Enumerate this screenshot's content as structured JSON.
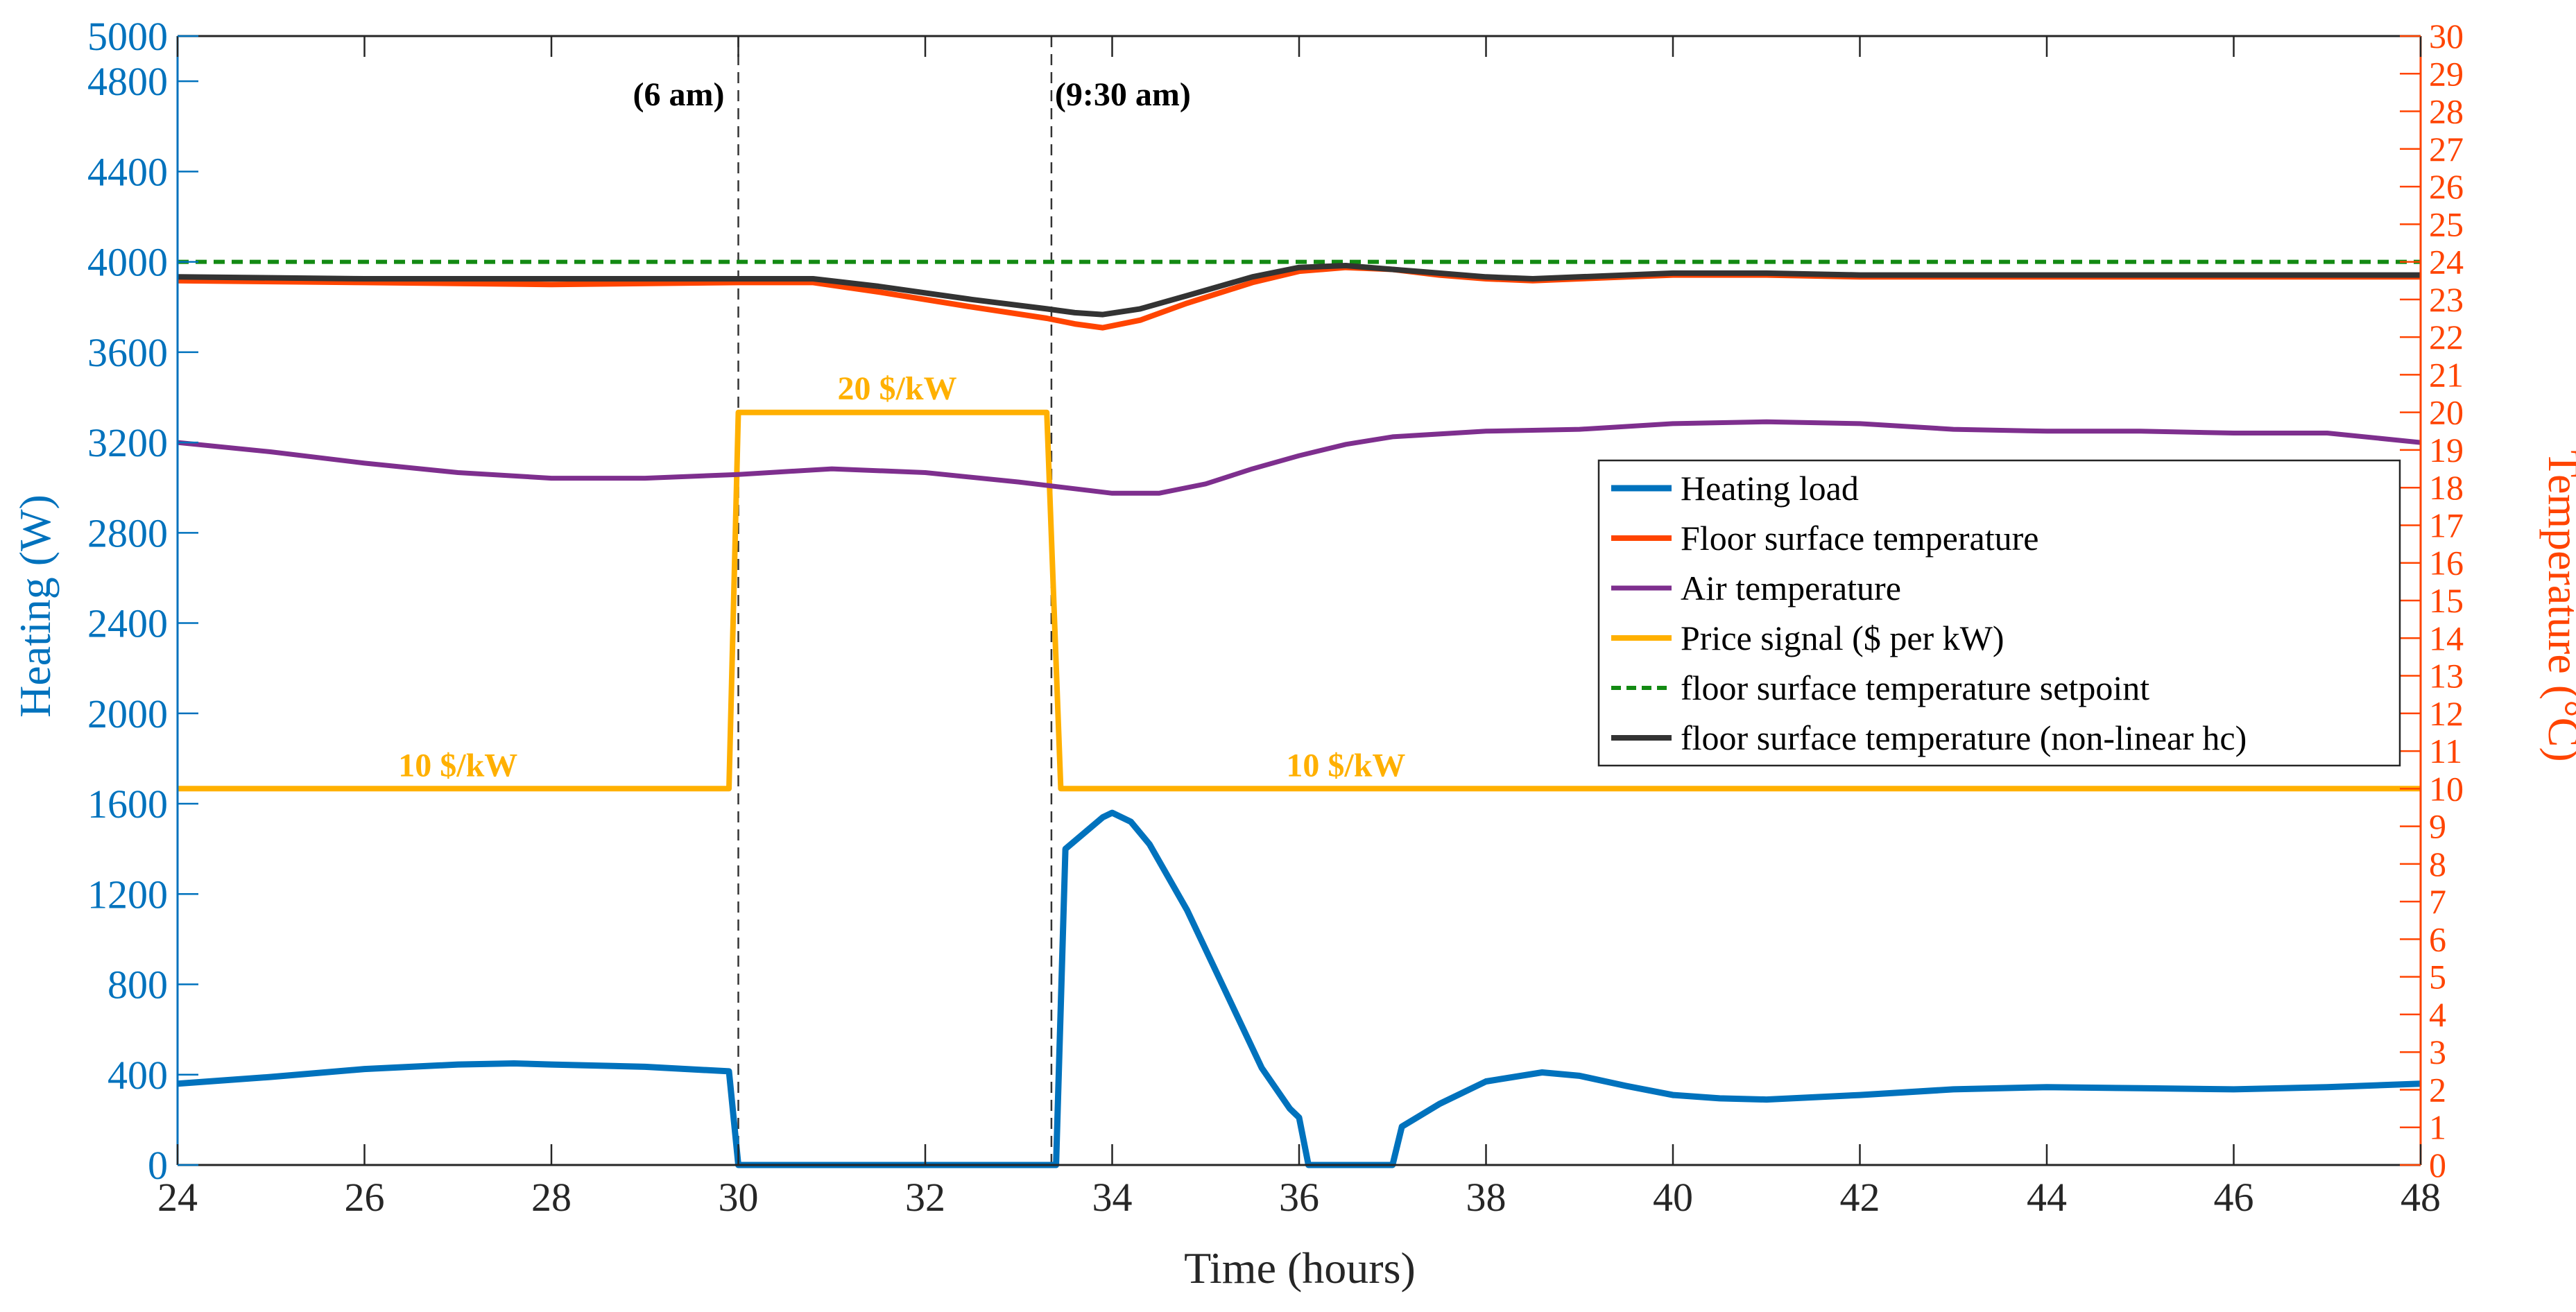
{
  "chart_data": {
    "type": "line",
    "xlabel": "Time (hours)",
    "ylabel_left": "Heating (W)",
    "ylabel_right": "Temperature (°C)",
    "xlim": [
      24,
      48
    ],
    "ylim_left": [
      0,
      5000
    ],
    "ylim_right": [
      0,
      30
    ],
    "x_ticks": [
      24,
      26,
      28,
      30,
      32,
      34,
      36,
      38,
      40,
      42,
      44,
      46,
      48
    ],
    "y_left_ticks": [
      0,
      400,
      800,
      1200,
      1600,
      2000,
      2400,
      2800,
      3200,
      3600,
      4000,
      4400,
      4800,
      5000
    ],
    "y_right_ticks": [
      0,
      1,
      2,
      3,
      4,
      5,
      6,
      7,
      8,
      9,
      10,
      11,
      12,
      13,
      14,
      15,
      16,
      17,
      18,
      19,
      20,
      21,
      22,
      23,
      24,
      25,
      26,
      27,
      28,
      29,
      30
    ],
    "grid": false,
    "legend_position": "right",
    "colors": {
      "left_axis": "#0072BD",
      "right_axis": "#FF4400",
      "heating": "#0072BD",
      "floor": "#FF4400",
      "air": "#7E2F8E",
      "price": "#FFB000",
      "setpoint": "#138A13",
      "nonlinear": "#333333"
    },
    "vlines": [
      {
        "x": 30,
        "label": "(6 am)"
      },
      {
        "x": 33.35,
        "label": "(9:30 am)"
      }
    ],
    "annotations": [
      {
        "text": "10 $/kW",
        "x": 27,
        "y": 1770
      },
      {
        "text": "20 $/kW",
        "x": 31.7,
        "y": 3440
      },
      {
        "text": "10 $/kW",
        "x": 36.5,
        "y": 1770
      }
    ],
    "series": [
      {
        "name": "Heating load",
        "axis": "left",
        "x": [
          24,
          25,
          26,
          27,
          27.6,
          28,
          29,
          29.9,
          30.0,
          31,
          32,
          33,
          33.4,
          33.5,
          33.9,
          34.0,
          34.2,
          34.4,
          34.8,
          35.2,
          35.6,
          35.9,
          36.0,
          36.1,
          36.5,
          37.0,
          37.1,
          37.5,
          38,
          38.6,
          39,
          39.5,
          40,
          40.5,
          41,
          42,
          43,
          44,
          45,
          46,
          47,
          48
        ],
        "y": [
          360,
          390,
          425,
          445,
          450,
          445,
          435,
          415,
          0,
          0,
          0,
          0,
          0,
          1400,
          1540,
          1560,
          1520,
          1420,
          1130,
          780,
          430,
          250,
          210,
          0,
          0,
          0,
          170,
          270,
          370,
          410,
          395,
          350,
          310,
          295,
          290,
          310,
          335,
          345,
          340,
          335,
          345,
          360
        ]
      },
      {
        "name": "Floor surface temperature",
        "axis": "right",
        "x": [
          24,
          26,
          28,
          30,
          30.8,
          31.5,
          32.5,
          33.3,
          33.6,
          33.9,
          34.3,
          34.8,
          35.5,
          36,
          36.5,
          37,
          37.5,
          38,
          38.5,
          39,
          40,
          41,
          42,
          44,
          46,
          48
        ],
        "y": [
          23.5,
          23.45,
          23.4,
          23.45,
          23.45,
          23.2,
          22.8,
          22.5,
          22.35,
          22.25,
          22.45,
          22.9,
          23.45,
          23.75,
          23.85,
          23.8,
          23.65,
          23.55,
          23.5,
          23.55,
          23.65,
          23.65,
          23.6,
          23.6,
          23.6,
          23.6
        ]
      },
      {
        "name": "Air temperature",
        "axis": "right",
        "x": [
          24,
          25,
          26,
          27,
          28,
          29,
          30,
          31,
          32,
          33,
          34,
          34.5,
          35,
          35.5,
          36,
          36.5,
          37,
          38,
          39,
          40,
          41,
          42,
          43,
          44,
          45,
          46,
          47,
          48
        ],
        "y": [
          19.2,
          18.95,
          18.65,
          18.4,
          18.25,
          18.25,
          18.35,
          18.5,
          18.4,
          18.15,
          17.85,
          17.85,
          18.1,
          18.5,
          18.85,
          19.15,
          19.35,
          19.5,
          19.55,
          19.7,
          19.75,
          19.7,
          19.55,
          19.5,
          19.5,
          19.45,
          19.45,
          19.2
        ]
      },
      {
        "name": "Price signal ($ per kW)",
        "axis": "right",
        "x": [
          24,
          29.9,
          30.0,
          33.3,
          33.45,
          48
        ],
        "y": [
          10,
          10,
          20,
          20,
          10,
          10
        ]
      },
      {
        "name": "floor surface temperature setpoint",
        "axis": "right",
        "x": [
          24,
          48
        ],
        "y": [
          24,
          24
        ]
      },
      {
        "name": "floor surface temperature (non-linear hc)",
        "axis": "right",
        "x": [
          24,
          26,
          28,
          30,
          30.8,
          31.5,
          32.5,
          33.3,
          33.6,
          33.9,
          34.3,
          34.8,
          35.5,
          36,
          36.5,
          37,
          37.5,
          38,
          38.5,
          39,
          40,
          41,
          42,
          44,
          46,
          48
        ],
        "y": [
          23.6,
          23.55,
          23.55,
          23.55,
          23.55,
          23.35,
          23.0,
          22.75,
          22.65,
          22.6,
          22.75,
          23.1,
          23.6,
          23.85,
          23.9,
          23.8,
          23.7,
          23.6,
          23.55,
          23.6,
          23.7,
          23.7,
          23.65,
          23.65,
          23.65,
          23.65
        ]
      }
    ]
  }
}
